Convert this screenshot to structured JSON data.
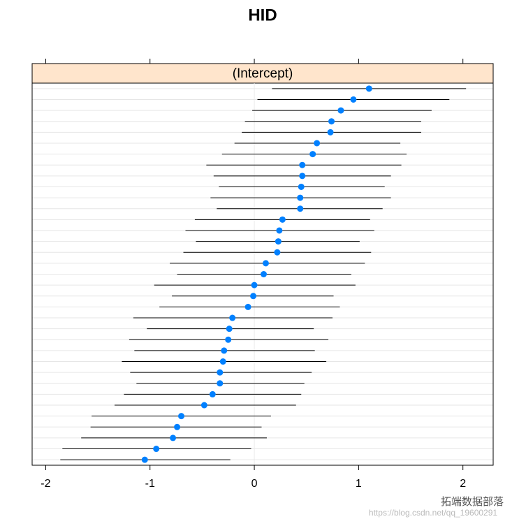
{
  "chart_data": {
    "type": "dotplot",
    "title": "HID",
    "panel": "(Intercept)",
    "categories": [
      null,
      null,
      null,
      null,
      null,
      null,
      null,
      null,
      null,
      null,
      null,
      null,
      null,
      null,
      null,
      null,
      null,
      null,
      null,
      null,
      null,
      null,
      null,
      null,
      null,
      null,
      null,
      null,
      null,
      null,
      null,
      null,
      null,
      null,
      null
    ],
    "values": [
      1.1,
      0.95,
      0.83,
      0.74,
      0.73,
      0.6,
      0.56,
      0.46,
      0.46,
      0.45,
      0.44,
      0.44,
      0.27,
      0.24,
      0.23,
      0.22,
      0.11,
      0.09,
      0.0,
      -0.01,
      -0.06,
      -0.21,
      -0.24,
      -0.25,
      -0.29,
      -0.3,
      -0.33,
      -0.33,
      -0.4,
      -0.48,
      -0.7,
      -0.74,
      -0.78,
      -0.94,
      -1.05
    ],
    "lower": [
      0.17,
      0.03,
      -0.02,
      -0.09,
      -0.12,
      -0.19,
      -0.31,
      -0.46,
      -0.39,
      -0.34,
      -0.42,
      -0.36,
      -0.57,
      -0.66,
      -0.56,
      -0.68,
      -0.81,
      -0.74,
      -0.96,
      -0.79,
      -0.91,
      -1.16,
      -1.03,
      -1.2,
      -1.15,
      -1.27,
      -1.19,
      -1.13,
      -1.25,
      -1.34,
      -1.56,
      -1.57,
      -1.66,
      -1.84,
      -1.86
    ],
    "upper": [
      2.03,
      1.87,
      1.7,
      1.6,
      1.6,
      1.4,
      1.46,
      1.41,
      1.31,
      1.25,
      1.31,
      1.23,
      1.11,
      1.15,
      1.01,
      1.12,
      1.06,
      0.93,
      0.97,
      0.76,
      0.82,
      0.75,
      0.57,
      0.71,
      0.58,
      0.69,
      0.55,
      0.48,
      0.45,
      0.4,
      0.16,
      0.07,
      0.12,
      -0.03,
      -0.23
    ],
    "xlim": [
      -2.13,
      2.29
    ],
    "xticks": [
      -2,
      -1,
      0,
      1,
      2
    ],
    "color": "#0080ff",
    "grid": true
  },
  "watermark": {
    "brand": "拓端数据部落",
    "url": "https://blog.csdn.net/qq_19600291"
  }
}
